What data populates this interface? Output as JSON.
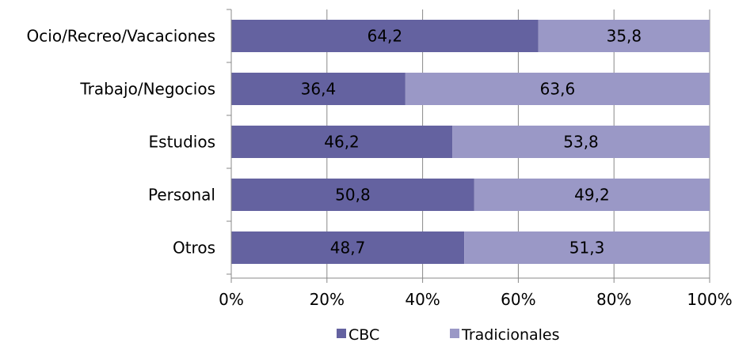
{
  "chart_data": {
    "type": "bar",
    "orientation": "horizontal",
    "stacked": "percent",
    "categories": [
      "Ocio/Recreo/Vacaciones",
      "Trabajo/Negocios",
      "Estudios",
      "Personal",
      "Otros"
    ],
    "series": [
      {
        "name": "CBC",
        "values": [
          64.2,
          36.4,
          46.2,
          50.8,
          48.7
        ],
        "labels": [
          "64,2",
          "36,4",
          "46,2",
          "50,8",
          "48,7"
        ],
        "color": "#6462a0"
      },
      {
        "name": "Tradicionales",
        "values": [
          35.8,
          63.6,
          53.8,
          49.2,
          51.3
        ],
        "labels": [
          "35,8",
          "63,6",
          "53,8",
          "49,2",
          "51,3"
        ],
        "color": "#9a98c6"
      }
    ],
    "x_ticks": [
      0,
      20,
      40,
      60,
      80,
      100
    ],
    "x_tick_labels": [
      "0%",
      "20%",
      "40%",
      "60%",
      "80%",
      "100%"
    ],
    "xlim": [
      0,
      100
    ],
    "grid": true,
    "legend": "bottom",
    "title": "",
    "xlabel": "",
    "ylabel": ""
  }
}
